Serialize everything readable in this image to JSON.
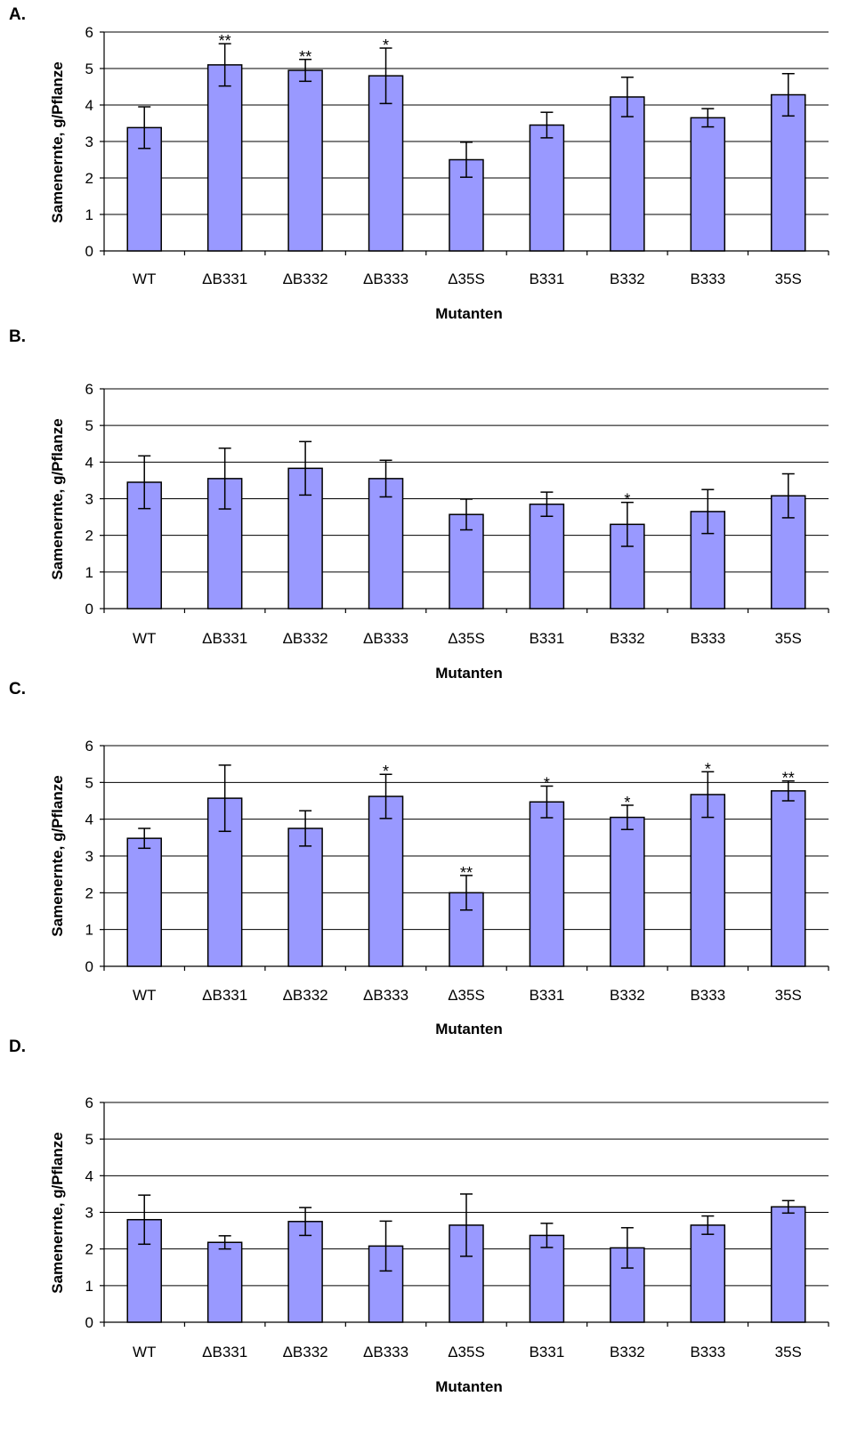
{
  "chart_data": [
    {
      "type": "bar",
      "panel_label": "A.",
      "categories": [
        "WT",
        "ΔB331",
        "ΔB332",
        "ΔB333",
        "Δ35S",
        "B331",
        "B332",
        "B333",
        "35S"
      ],
      "values": [
        3.38,
        5.1,
        4.95,
        4.8,
        2.5,
        3.45,
        4.22,
        3.65,
        4.28
      ],
      "errors": [
        0.57,
        0.58,
        0.3,
        0.76,
        0.48,
        0.35,
        0.54,
        0.25,
        0.58
      ],
      "significance": [
        "",
        "**",
        "**",
        "*",
        "",
        "",
        "",
        "",
        ""
      ],
      "xlabel": "Mutanten",
      "ylabel": "Samenernte, g/Pflanze",
      "ylim": [
        0,
        6
      ],
      "yticks": [
        "0",
        "1",
        "2",
        "3",
        "4",
        "5",
        "6"
      ],
      "grid": true
    },
    {
      "type": "bar",
      "panel_label": "B.",
      "categories": [
        "WT",
        "ΔB331",
        "ΔB332",
        "ΔB333",
        "Δ35S",
        "B331",
        "B332",
        "B333",
        "35S"
      ],
      "values": [
        3.45,
        3.55,
        3.83,
        3.55,
        2.57,
        2.85,
        2.3,
        2.65,
        3.08
      ],
      "errors": [
        0.72,
        0.83,
        0.73,
        0.5,
        0.42,
        0.33,
        0.6,
        0.6,
        0.6
      ],
      "significance": [
        "",
        "",
        "",
        "",
        "",
        "",
        "*",
        "",
        ""
      ],
      "xlabel": "Mutanten",
      "ylabel": "Samenernte, g/Pflanze",
      "ylim": [
        0,
        6
      ],
      "yticks": [
        "0",
        "1",
        "2",
        "3",
        "4",
        "5",
        "6"
      ],
      "grid": true
    },
    {
      "type": "bar",
      "panel_label": "C.",
      "categories": [
        "WT",
        "ΔB331",
        "ΔB332",
        "ΔB333",
        "Δ35S",
        "B331",
        "B332",
        "B333",
        "35S"
      ],
      "values": [
        3.48,
        4.57,
        3.75,
        4.62,
        2.0,
        4.47,
        4.05,
        4.67,
        4.77
      ],
      "errors": [
        0.27,
        0.9,
        0.48,
        0.6,
        0.47,
        0.43,
        0.33,
        0.62,
        0.27
      ],
      "significance": [
        "",
        "",
        "",
        "*",
        "**",
        "*",
        "*",
        "*",
        "**"
      ],
      "xlabel": "Mutanten",
      "ylabel": "Samenernte, g/Pflanze",
      "ylim": [
        0,
        6
      ],
      "yticks": [
        "0",
        "1",
        "2",
        "3",
        "4",
        "5",
        "6"
      ],
      "grid": true
    },
    {
      "type": "bar",
      "panel_label": "D.",
      "categories": [
        "WT",
        "ΔB331",
        "ΔB332",
        "ΔB333",
        "Δ35S",
        "B331",
        "B332",
        "B333",
        "35S"
      ],
      "values": [
        2.8,
        2.18,
        2.75,
        2.08,
        2.65,
        2.37,
        2.03,
        2.65,
        3.15
      ],
      "errors": [
        0.67,
        0.18,
        0.38,
        0.68,
        0.85,
        0.33,
        0.55,
        0.25,
        0.17
      ],
      "significance": [
        "",
        "",
        "",
        "",
        "",
        "",
        "",
        "",
        ""
      ],
      "xlabel": "Mutanten",
      "ylabel": "Samenernte, g/Pflanze",
      "ylim": [
        0,
        6
      ],
      "yticks": [
        "0",
        "1",
        "2",
        "3",
        "4",
        "5",
        "6"
      ],
      "grid": true
    }
  ],
  "colors": {
    "bar_fill": "#9999ff",
    "bar_stroke": "#000000",
    "grid": "#000000"
  }
}
